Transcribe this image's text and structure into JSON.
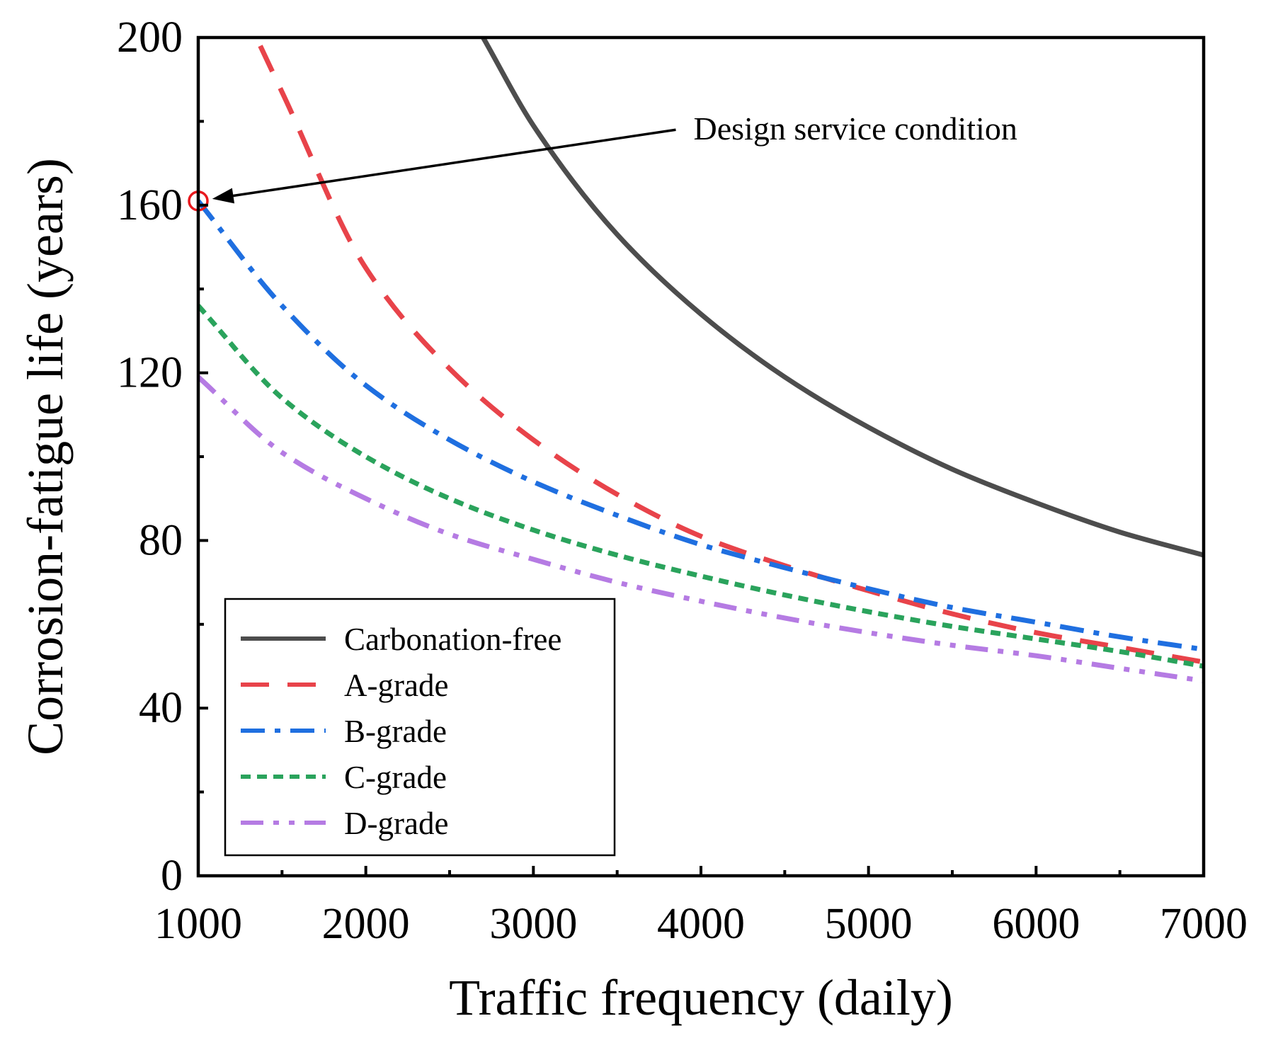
{
  "chart_data": {
    "type": "line",
    "title": "",
    "xlabel": "Traffic frequency (daily)",
    "ylabel": "Corrosion-fatigue life (years)",
    "xlim": [
      1000,
      7000
    ],
    "ylim": [
      0,
      200
    ],
    "x_ticks": [
      1000,
      2000,
      3000,
      4000,
      5000,
      6000,
      7000
    ],
    "y_ticks": [
      0,
      40,
      80,
      120,
      160,
      200
    ],
    "x_ticks_labels": [
      "1000",
      "2000",
      "3000",
      "4000",
      "5000",
      "6000",
      "7000"
    ],
    "y_ticks_labels": [
      "0",
      "40",
      "80",
      "120",
      "160",
      "200"
    ],
    "grid": false,
    "legend_position": "bottom-left",
    "series": [
      {
        "name": "Carbonation-free",
        "color": "#4d4d4d",
        "style": "solid",
        "x": [
          2700,
          3000,
          3500,
          4000,
          4500,
          5000,
          5500,
          6000,
          6500,
          7000
        ],
        "values": [
          200,
          179,
          153,
          134,
          119,
          107,
          97,
          89,
          82,
          76.5
        ]
      },
      {
        "name": "A-grade",
        "color": "#e8434a",
        "style": "dashed",
        "x": [
          1370,
          1500,
          2000,
          2500,
          3000,
          3500,
          4000,
          4500,
          5000,
          5500,
          6000,
          6500,
          7000
        ],
        "values": [
          198,
          187,
          145,
          121,
          104,
          91,
          81,
          74,
          68,
          62.5,
          58,
          54.5,
          51
        ]
      },
      {
        "name": "B-grade",
        "color": "#1f6fe0",
        "style": "dashdot",
        "x": [
          1000,
          1500,
          2000,
          2500,
          3000,
          3500,
          4000,
          4500,
          5000,
          5500,
          6000,
          6500,
          7000
        ],
        "values": [
          161,
          136,
          117,
          104,
          94,
          86,
          79,
          73.5,
          68.5,
          64,
          60.5,
          57,
          54
        ]
      },
      {
        "name": "C-grade",
        "color": "#2aa35c",
        "style": "dotted",
        "x": [
          1000,
          1500,
          2000,
          2500,
          3000,
          3500,
          4000,
          4500,
          5000,
          5500,
          6000,
          6500,
          7000
        ],
        "values": [
          136,
          114,
          100,
          90,
          82.5,
          76.5,
          71.5,
          67,
          63,
          59.5,
          56.5,
          53.5,
          50
        ]
      },
      {
        "name": "D-grade",
        "color": "#b57be3",
        "style": "dashdotdot",
        "x": [
          1000,
          1500,
          2000,
          2500,
          3000,
          3500,
          4000,
          4500,
          5000,
          5500,
          6000,
          6500,
          7000
        ],
        "values": [
          119,
          101,
          90,
          81.5,
          75.5,
          70,
          65.5,
          61.5,
          58,
          55,
          52.5,
          49.5,
          46.5
        ]
      }
    ],
    "annotations": [
      {
        "text": "Design service condition",
        "point": [
          1000,
          161
        ],
        "marker_color": "#e8191e",
        "arrow_from": [
          3850,
          178
        ]
      }
    ]
  }
}
